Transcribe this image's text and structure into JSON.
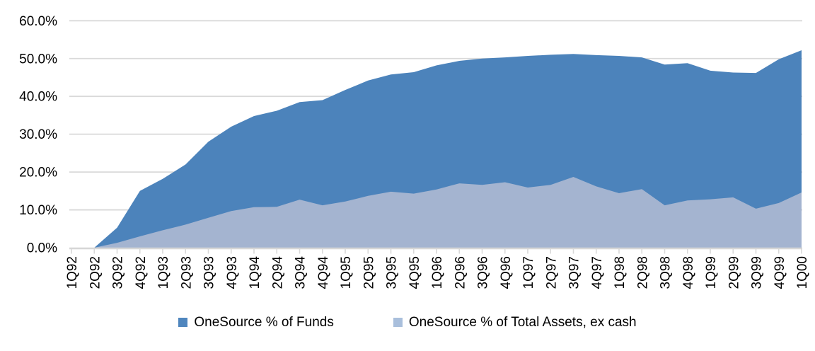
{
  "chart_data": {
    "type": "area",
    "title": "",
    "categories": [
      "1Q92",
      "2Q92",
      "3Q92",
      "4Q92",
      "1Q93",
      "2Q93",
      "3Q93",
      "4Q93",
      "1Q94",
      "2Q94",
      "3Q94",
      "4Q94",
      "1Q95",
      "2Q95",
      "3Q95",
      "4Q95",
      "1Q96",
      "2Q96",
      "3Q96",
      "4Q96",
      "1Q97",
      "2Q97",
      "3Q97",
      "4Q97",
      "1Q98",
      "2Q98",
      "3Q98",
      "4Q98",
      "1Q99",
      "2Q99",
      "3Q99",
      "4Q99",
      "1Q00"
    ],
    "series": [
      {
        "name": "OneSource % of Funds",
        "color": "#4C83BB",
        "legend_color": "#4F86BE",
        "values": [
          0,
          0,
          5.3,
          15.0,
          18.2,
          22.0,
          28.0,
          32.0,
          34.8,
          36.2,
          38.5,
          39.0,
          41.7,
          44.2,
          45.8,
          46.4,
          48.2,
          49.4,
          50.0,
          50.3,
          50.7,
          51.0,
          51.2,
          50.9,
          50.7,
          50.3,
          48.4,
          48.8,
          46.8,
          46.3,
          46.2,
          49.8,
          52.2
        ]
      },
      {
        "name": "OneSource % of Total Assets, ex cash",
        "color": "#A4B4D0",
        "legend_color": "#A9BFDC",
        "values": [
          0,
          0,
          1.3,
          3.0,
          4.6,
          6.1,
          7.9,
          9.7,
          10.7,
          10.8,
          12.7,
          11.2,
          12.2,
          13.7,
          14.8,
          14.3,
          15.4,
          17.0,
          16.6,
          17.3,
          15.9,
          16.6,
          18.7,
          16.2,
          14.4,
          15.5,
          11.2,
          12.5,
          12.8,
          13.3,
          10.3,
          11.8,
          14.6
        ]
      }
    ],
    "y_axis": {
      "min": 0,
      "max": 60,
      "step": 10,
      "tick_labels": [
        "0.0%",
        "10.0%",
        "20.0%",
        "30.0%",
        "40.0%",
        "50.0%",
        "60.0%"
      ]
    },
    "grid": true,
    "gridline_color": "#D9D9D9",
    "axis_line_color": "#D6D6D6",
    "text_color": "#000000",
    "legend_position": "bottom"
  }
}
